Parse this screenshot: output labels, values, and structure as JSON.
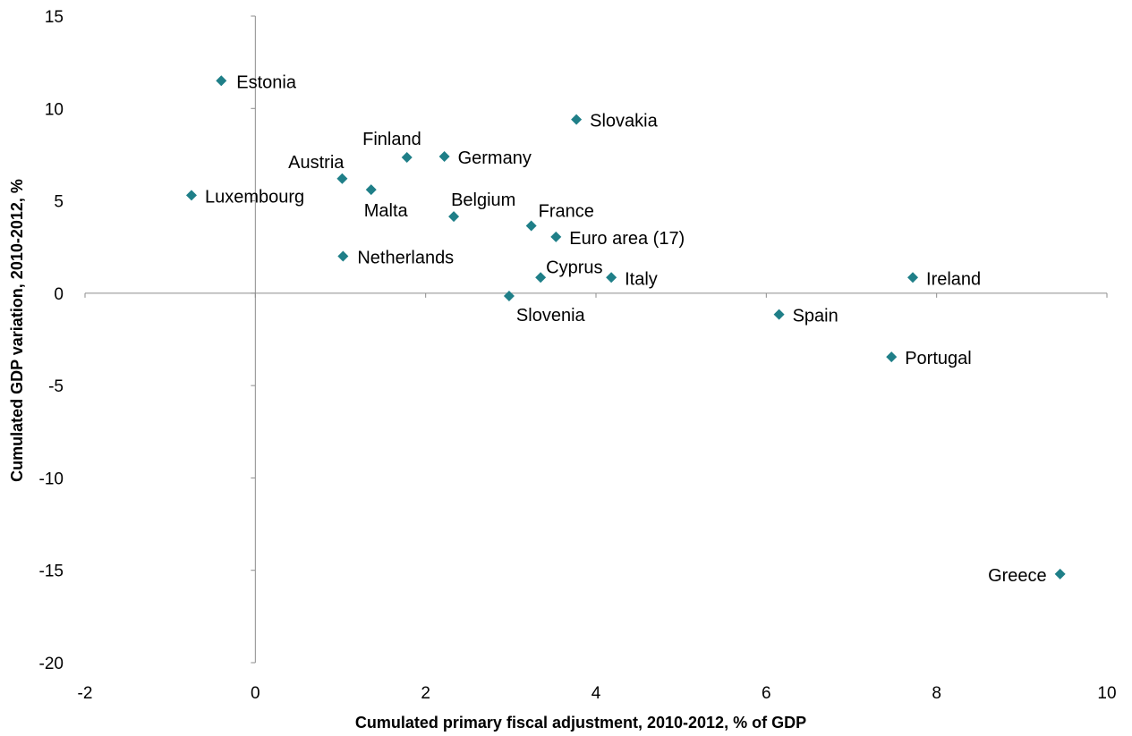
{
  "chart_data": {
    "type": "scatter",
    "xlabel": "Cumulated primary fiscal adjustment, 2010-2012, % of GDP",
    "ylabel": "Cumulated GDP variation, 2010-2012, %",
    "xlim": [
      -2,
      10
    ],
    "ylim": [
      -20,
      15
    ],
    "xticks": [
      "-2",
      "0",
      "2",
      "4",
      "6",
      "8",
      "10"
    ],
    "yticks": [
      "15",
      "10",
      "5",
      "0",
      "-5",
      "-10",
      "-15",
      "-20"
    ],
    "grid": false,
    "legend": "none",
    "marker_color": "#1f7f88",
    "points": [
      {
        "label": "Estonia",
        "x": -0.4,
        "y": 11.5
      },
      {
        "label": "Luxembourg",
        "x": -0.75,
        "y": 5.3
      },
      {
        "label": "Austria",
        "x": 1.02,
        "y": 6.2
      },
      {
        "label": "Malta",
        "x": 1.36,
        "y": 5.6
      },
      {
        "label": "Finland",
        "x": 1.78,
        "y": 7.35
      },
      {
        "label": "Germany",
        "x": 2.22,
        "y": 7.4
      },
      {
        "label": "Belgium",
        "x": 2.33,
        "y": 4.15
      },
      {
        "label": "Netherlands",
        "x": 1.03,
        "y": 2.0
      },
      {
        "label": "Slovakia",
        "x": 3.77,
        "y": 9.4
      },
      {
        "label": "France",
        "x": 3.24,
        "y": 3.65
      },
      {
        "label": "Euro area (17)",
        "x": 3.53,
        "y": 3.05
      },
      {
        "label": "Cyprus",
        "x": 3.35,
        "y": 0.85
      },
      {
        "label": "Italy",
        "x": 4.18,
        "y": 0.85
      },
      {
        "label": "Slovenia",
        "x": 2.98,
        "y": -0.15
      },
      {
        "label": "Spain",
        "x": 6.15,
        "y": -1.15
      },
      {
        "label": "Ireland",
        "x": 7.72,
        "y": 0.85
      },
      {
        "label": "Portugal",
        "x": 7.47,
        "y": -3.45
      },
      {
        "label": "Greece",
        "x": 9.45,
        "y": -15.2
      }
    ]
  }
}
